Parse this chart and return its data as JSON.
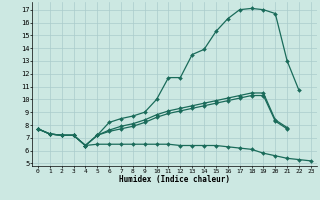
{
  "xlabel": "Humidex (Indice chaleur)",
  "bg_color": "#cce8e2",
  "line_color": "#1a6b5a",
  "grid_color": "#aacccc",
  "xlim": [
    -0.5,
    23.5
  ],
  "ylim": [
    4.8,
    17.6
  ],
  "yticks": [
    5,
    6,
    7,
    8,
    9,
    10,
    11,
    12,
    13,
    14,
    15,
    16,
    17
  ],
  "xticks": [
    0,
    1,
    2,
    3,
    4,
    5,
    6,
    7,
    8,
    9,
    10,
    11,
    12,
    13,
    14,
    15,
    16,
    17,
    18,
    19,
    20,
    21,
    22,
    23
  ],
  "lines": [
    {
      "x": [
        0,
        1,
        2,
        3,
        4,
        5,
        6,
        7,
        8,
        9,
        10,
        11,
        12,
        13,
        14,
        15,
        16,
        17,
        18,
        19,
        20,
        21,
        22
      ],
      "y": [
        7.7,
        7.3,
        7.2,
        7.2,
        6.4,
        7.2,
        8.2,
        8.5,
        8.7,
        9.0,
        10.0,
        11.7,
        11.7,
        13.5,
        13.9,
        15.3,
        16.3,
        17.0,
        17.1,
        17.0,
        16.7,
        13.0,
        10.7
      ]
    },
    {
      "x": [
        0,
        1,
        2,
        3,
        4,
        5,
        6,
        7,
        8,
        9,
        10,
        11,
        12,
        13,
        14,
        15,
        16,
        17,
        18,
        19,
        20,
        21,
        22,
        23
      ],
      "y": [
        7.7,
        7.3,
        7.2,
        7.2,
        6.4,
        6.5,
        6.5,
        6.5,
        6.5,
        6.5,
        6.5,
        6.5,
        6.4,
        6.4,
        6.4,
        6.4,
        6.3,
        6.2,
        6.1,
        5.8,
        5.6,
        5.4,
        5.3,
        5.2
      ]
    },
    {
      "x": [
        0,
        1,
        2,
        3,
        4,
        5,
        6,
        7,
        8,
        9,
        10,
        11,
        12,
        13,
        14,
        15,
        16,
        17,
        18,
        19,
        20,
        21
      ],
      "y": [
        7.7,
        7.3,
        7.2,
        7.2,
        6.4,
        7.2,
        7.6,
        7.9,
        8.1,
        8.4,
        8.8,
        9.1,
        9.3,
        9.5,
        9.7,
        9.9,
        10.1,
        10.3,
        10.5,
        10.5,
        8.4,
        7.8
      ]
    },
    {
      "x": [
        0,
        1,
        2,
        3,
        4,
        5,
        6,
        7,
        8,
        9,
        10,
        11,
        12,
        13,
        14,
        15,
        16,
        17,
        18,
        19,
        20,
        21
      ],
      "y": [
        7.7,
        7.3,
        7.2,
        7.2,
        6.4,
        7.2,
        7.5,
        7.7,
        7.9,
        8.2,
        8.6,
        8.9,
        9.1,
        9.3,
        9.5,
        9.7,
        9.9,
        10.1,
        10.3,
        10.3,
        8.3,
        7.7
      ]
    }
  ]
}
